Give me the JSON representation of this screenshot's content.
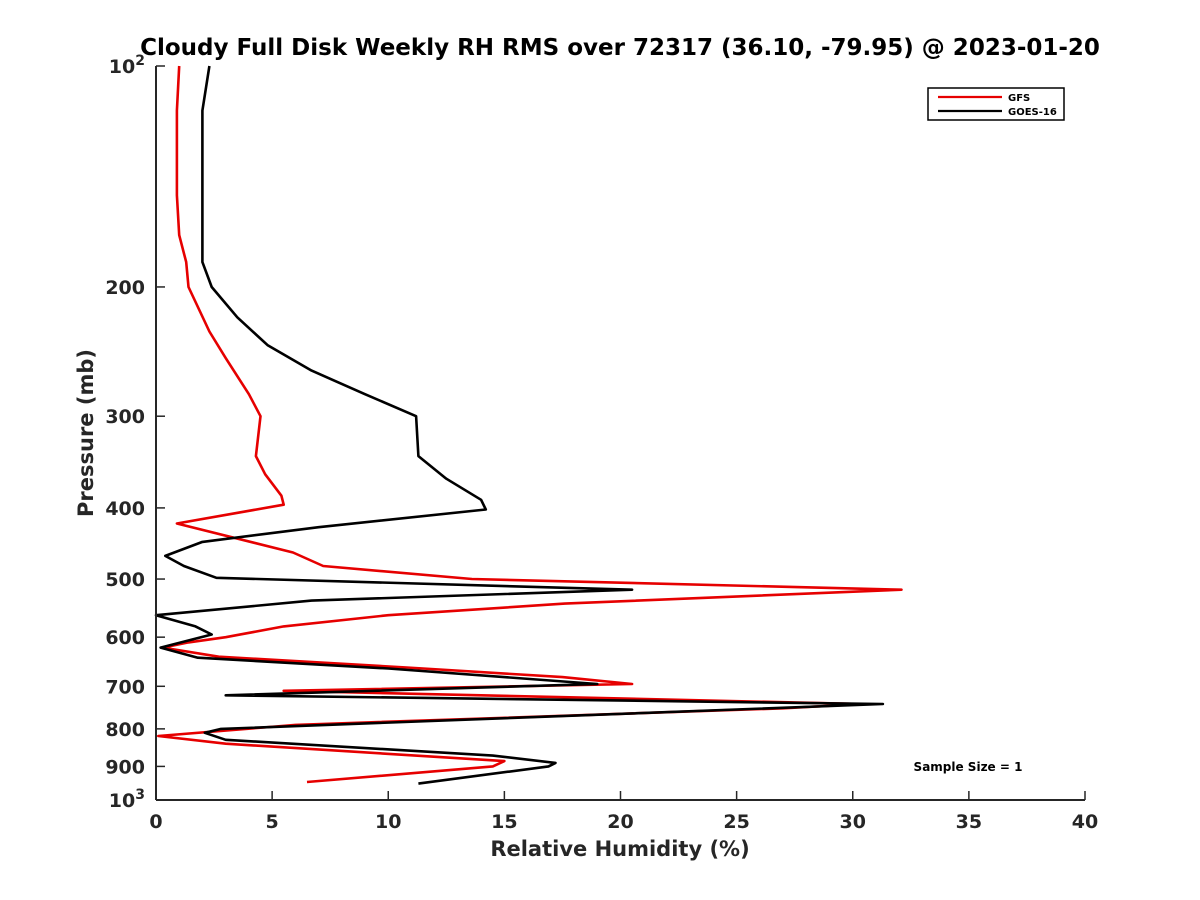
{
  "chart_data": {
    "type": "line",
    "title": "Cloudy Full Disk Weekly RH RMS over 72317 (36.10, -79.95) @ 2023-01-20",
    "xlabel": "Relative Humidity (%)",
    "ylabel": "Pressure (mb)",
    "xlim": [
      0,
      40
    ],
    "ylim": [
      100,
      1000
    ],
    "y_scale": "log",
    "y_reversed": true,
    "grid": false,
    "legend_position": "top-right",
    "x_ticks": [
      0,
      5,
      10,
      15,
      20,
      25,
      30,
      35,
      40
    ],
    "x_tick_labels": [
      "0",
      "5",
      "10",
      "15",
      "20",
      "25",
      "30",
      "35",
      "40"
    ],
    "y_ticks": [
      {
        "value": 100,
        "base": "10",
        "exp": "2"
      },
      {
        "value": 200,
        "label": "200"
      },
      {
        "value": 300,
        "label": "300"
      },
      {
        "value": 400,
        "label": "400"
      },
      {
        "value": 500,
        "label": "500"
      },
      {
        "value": 600,
        "label": "600"
      },
      {
        "value": 700,
        "label": "700"
      },
      {
        "value": 800,
        "label": "800"
      },
      {
        "value": 900,
        "label": "900"
      },
      {
        "value": 1000,
        "base": "10",
        "exp": "3"
      }
    ],
    "annotation": "Sample Size = 1",
    "series": [
      {
        "name": "GFS",
        "color": "#e60000",
        "points": [
          [
            1.0,
            100
          ],
          [
            0.9,
            115
          ],
          [
            0.9,
            150
          ],
          [
            1.0,
            170
          ],
          [
            1.3,
            185
          ],
          [
            1.4,
            200
          ],
          [
            2.3,
            230
          ],
          [
            3.0,
            250
          ],
          [
            4.0,
            280
          ],
          [
            4.5,
            300
          ],
          [
            4.3,
            340
          ],
          [
            4.7,
            360
          ],
          [
            5.4,
            385
          ],
          [
            5.5,
            396
          ],
          [
            0.9,
            420
          ],
          [
            5.9,
            460
          ],
          [
            7.2,
            480
          ],
          [
            13.6,
            500
          ],
          [
            32.1,
            517
          ],
          [
            17.6,
            540
          ],
          [
            10.0,
            560
          ],
          [
            5.5,
            580
          ],
          [
            3.0,
            600
          ],
          [
            1.4,
            610
          ],
          [
            0.3,
            620
          ],
          [
            2.7,
            638
          ],
          [
            10.8,
            660
          ],
          [
            17.5,
            680
          ],
          [
            20.5,
            695
          ],
          [
            5.5,
            710
          ],
          [
            30.4,
            740
          ],
          [
            27.0,
            750
          ],
          [
            6.0,
            790
          ],
          [
            0.1,
            818
          ],
          [
            3.0,
            838
          ],
          [
            15.0,
            885
          ],
          [
            14.5,
            900
          ],
          [
            6.5,
            945
          ]
        ]
      },
      {
        "name": "GOES-16",
        "color": "#000000",
        "points": [
          [
            2.3,
            100
          ],
          [
            2.0,
            115
          ],
          [
            2.0,
            150
          ],
          [
            2.0,
            185
          ],
          [
            2.4,
            200
          ],
          [
            3.5,
            220
          ],
          [
            4.8,
            240
          ],
          [
            6.7,
            260
          ],
          [
            9.0,
            280
          ],
          [
            11.2,
            300
          ],
          [
            11.3,
            340
          ],
          [
            12.5,
            365
          ],
          [
            14.0,
            390
          ],
          [
            14.2,
            402
          ],
          [
            7.0,
            425
          ],
          [
            2.0,
            445
          ],
          [
            0.4,
            465
          ],
          [
            1.2,
            480
          ],
          [
            2.6,
            498
          ],
          [
            20.5,
            517
          ],
          [
            6.7,
            535
          ],
          [
            0.0,
            560
          ],
          [
            1.7,
            580
          ],
          [
            2.4,
            595
          ],
          [
            0.2,
            620
          ],
          [
            1.8,
            640
          ],
          [
            10.0,
            662
          ],
          [
            19.0,
            695
          ],
          [
            3.0,
            720
          ],
          [
            31.3,
            740
          ],
          [
            2.8,
            800
          ],
          [
            2.1,
            810
          ],
          [
            3.0,
            828
          ],
          [
            14.5,
            870
          ],
          [
            17.2,
            890
          ],
          [
            16.9,
            900
          ],
          [
            11.3,
            950
          ]
        ]
      }
    ]
  }
}
